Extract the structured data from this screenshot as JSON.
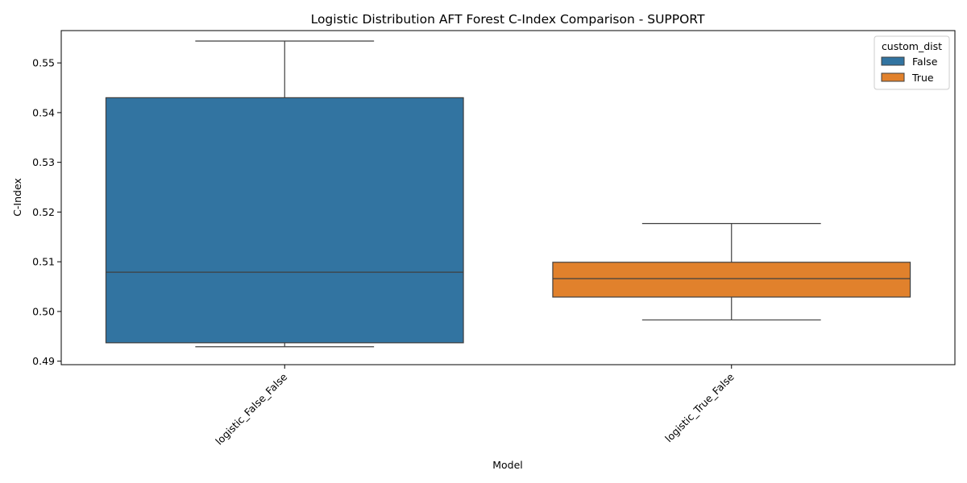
{
  "chart_data": {
    "type": "box",
    "title": "Logistic Distribution AFT Forest C-Index Comparison - SUPPORT",
    "xlabel": "Model",
    "ylabel": "C-Index",
    "ylim": [
      0.4893,
      0.5565
    ],
    "yticks": [
      "0.49",
      "0.50",
      "0.51",
      "0.52",
      "0.53",
      "0.54",
      "0.55"
    ],
    "yticks_values": [
      0.49,
      0.5,
      0.51,
      0.52,
      0.53,
      0.54,
      0.55
    ],
    "categories": [
      "logistic_False_False",
      "logistic_True_False"
    ],
    "legend": {
      "title": "custom_dist",
      "placement": "upper-right",
      "entries": [
        {
          "label": "False",
          "color": "#3274a1"
        },
        {
          "label": "True",
          "color": "#e1812c"
        }
      ]
    },
    "boxes": [
      {
        "category": "logistic_False_False",
        "hue": "False",
        "color": "#3274a1",
        "whisker_low": 0.4929,
        "q1": 0.4937,
        "median": 0.5079,
        "q3": 0.543,
        "whisker_high": 0.5544
      },
      {
        "category": "logistic_True_False",
        "hue": "True",
        "color": "#e1812c",
        "whisker_low": 0.4983,
        "q1": 0.5029,
        "median": 0.5066,
        "q3": 0.5099,
        "whisker_high": 0.5177
      }
    ],
    "grid": false
  }
}
